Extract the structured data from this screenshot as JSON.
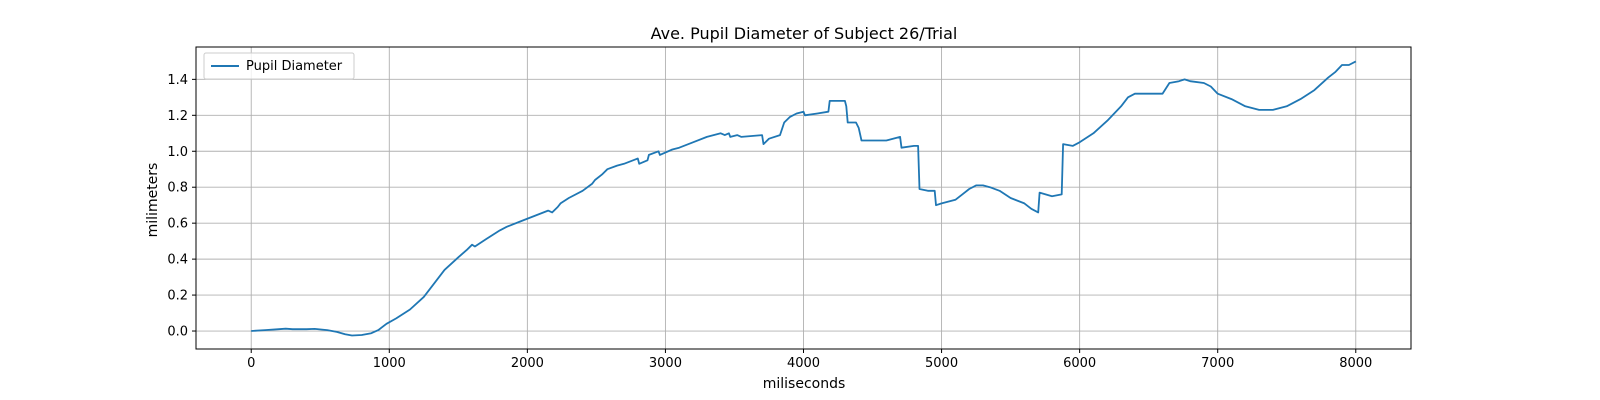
{
  "chart_data": {
    "type": "line",
    "title": "Ave. Pupil Diameter of Subject 26/Trial",
    "xlabel": "miliseconds",
    "ylabel": "milimeters",
    "xlim": [
      -400,
      8400
    ],
    "ylim": [
      -0.1,
      1.58
    ],
    "xticks": [
      0,
      1000,
      2000,
      3000,
      4000,
      5000,
      6000,
      7000,
      8000
    ],
    "yticks": [
      0.0,
      0.2,
      0.4,
      0.6,
      0.8,
      1.0,
      1.2,
      1.4
    ],
    "xtick_labels": [
      "0",
      "1000",
      "2000",
      "3000",
      "4000",
      "5000",
      "6000",
      "7000",
      "8000"
    ],
    "ytick_labels": [
      "0.0",
      "0.2",
      "0.4",
      "0.6",
      "0.8",
      "1.0",
      "1.2",
      "1.4"
    ],
    "grid": true,
    "legend_position": "top-left",
    "series": [
      {
        "name": "Pupil Diameter",
        "color": "#1f77b4",
        "points": [
          [
            0,
            0.0
          ],
          [
            100,
            0.005
          ],
          [
            200,
            0.01
          ],
          [
            250,
            0.013
          ],
          [
            300,
            0.01
          ],
          [
            400,
            0.01
          ],
          [
            460,
            0.012
          ],
          [
            550,
            0.005
          ],
          [
            620,
            -0.005
          ],
          [
            680,
            -0.018
          ],
          [
            730,
            -0.025
          ],
          [
            800,
            -0.022
          ],
          [
            870,
            -0.012
          ],
          [
            920,
            0.005
          ],
          [
            980,
            0.04
          ],
          [
            1050,
            0.07
          ],
          [
            1150,
            0.12
          ],
          [
            1250,
            0.19
          ],
          [
            1320,
            0.26
          ],
          [
            1400,
            0.34
          ],
          [
            1500,
            0.41
          ],
          [
            1560,
            0.45
          ],
          [
            1600,
            0.48
          ],
          [
            1620,
            0.47
          ],
          [
            1700,
            0.51
          ],
          [
            1800,
            0.56
          ],
          [
            1850,
            0.58
          ],
          [
            1950,
            0.61
          ],
          [
            2050,
            0.64
          ],
          [
            2150,
            0.67
          ],
          [
            2180,
            0.66
          ],
          [
            2220,
            0.69
          ],
          [
            2240,
            0.71
          ],
          [
            2300,
            0.74
          ],
          [
            2400,
            0.78
          ],
          [
            2470,
            0.82
          ],
          [
            2490,
            0.84
          ],
          [
            2540,
            0.87
          ],
          [
            2580,
            0.9
          ],
          [
            2650,
            0.92
          ],
          [
            2700,
            0.93
          ],
          [
            2800,
            0.96
          ],
          [
            2810,
            0.93
          ],
          [
            2870,
            0.95
          ],
          [
            2880,
            0.98
          ],
          [
            2950,
            1.0
          ],
          [
            2960,
            0.98
          ],
          [
            3050,
            1.01
          ],
          [
            3100,
            1.02
          ],
          [
            3200,
            1.05
          ],
          [
            3300,
            1.08
          ],
          [
            3400,
            1.1
          ],
          [
            3430,
            1.09
          ],
          [
            3460,
            1.1
          ],
          [
            3470,
            1.08
          ],
          [
            3520,
            1.09
          ],
          [
            3550,
            1.08
          ],
          [
            3700,
            1.09
          ],
          [
            3710,
            1.04
          ],
          [
            3750,
            1.07
          ],
          [
            3830,
            1.09
          ],
          [
            3860,
            1.16
          ],
          [
            3900,
            1.19
          ],
          [
            3950,
            1.21
          ],
          [
            4000,
            1.22
          ],
          [
            4010,
            1.2
          ],
          [
            4100,
            1.21
          ],
          [
            4180,
            1.22
          ],
          [
            4190,
            1.28
          ],
          [
            4300,
            1.28
          ],
          [
            4310,
            1.25
          ],
          [
            4320,
            1.16
          ],
          [
            4380,
            1.16
          ],
          [
            4400,
            1.13
          ],
          [
            4420,
            1.06
          ],
          [
            4600,
            1.06
          ],
          [
            4700,
            1.08
          ],
          [
            4710,
            1.02
          ],
          [
            4800,
            1.03
          ],
          [
            4830,
            1.03
          ],
          [
            4840,
            0.79
          ],
          [
            4900,
            0.78
          ],
          [
            4950,
            0.78
          ],
          [
            4960,
            0.7
          ],
          [
            5000,
            0.71
          ],
          [
            5100,
            0.73
          ],
          [
            5150,
            0.76
          ],
          [
            5200,
            0.79
          ],
          [
            5250,
            0.81
          ],
          [
            5300,
            0.81
          ],
          [
            5350,
            0.8
          ],
          [
            5420,
            0.78
          ],
          [
            5500,
            0.74
          ],
          [
            5600,
            0.71
          ],
          [
            5650,
            0.68
          ],
          [
            5700,
            0.66
          ],
          [
            5710,
            0.77
          ],
          [
            5800,
            0.75
          ],
          [
            5870,
            0.76
          ],
          [
            5880,
            1.04
          ],
          [
            5950,
            1.03
          ],
          [
            6000,
            1.05
          ],
          [
            6100,
            1.1
          ],
          [
            6200,
            1.17
          ],
          [
            6300,
            1.25
          ],
          [
            6350,
            1.3
          ],
          [
            6400,
            1.32
          ],
          [
            6600,
            1.32
          ],
          [
            6650,
            1.38
          ],
          [
            6720,
            1.39
          ],
          [
            6760,
            1.4
          ],
          [
            6800,
            1.39
          ],
          [
            6900,
            1.38
          ],
          [
            6950,
            1.36
          ],
          [
            7000,
            1.32
          ],
          [
            7100,
            1.29
          ],
          [
            7200,
            1.25
          ],
          [
            7300,
            1.23
          ],
          [
            7400,
            1.23
          ],
          [
            7500,
            1.25
          ],
          [
            7600,
            1.29
          ],
          [
            7700,
            1.34
          ],
          [
            7800,
            1.41
          ],
          [
            7850,
            1.44
          ],
          [
            7900,
            1.48
          ],
          [
            7950,
            1.48
          ],
          [
            8000,
            1.5
          ]
        ]
      }
    ]
  }
}
